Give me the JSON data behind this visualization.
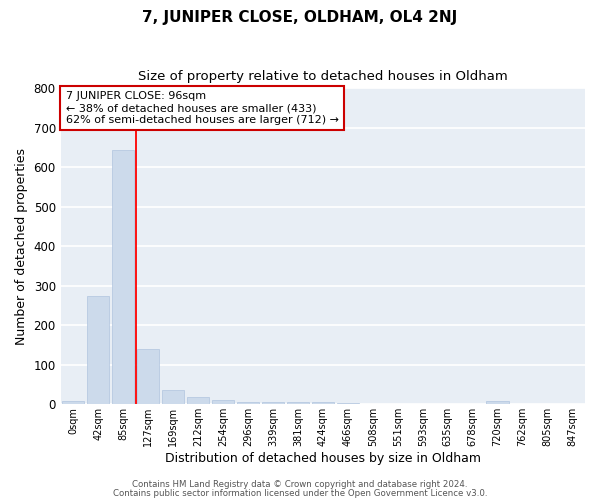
{
  "title": "7, JUNIPER CLOSE, OLDHAM, OL4 2NJ",
  "subtitle": "Size of property relative to detached houses in Oldham",
  "xlabel": "Distribution of detached houses by size in Oldham",
  "ylabel": "Number of detached properties",
  "bar_color": "#ccdaeb",
  "bar_edge_color": "#b0c4de",
  "categories": [
    "0sqm",
    "42sqm",
    "85sqm",
    "127sqm",
    "169sqm",
    "212sqm",
    "254sqm",
    "296sqm",
    "339sqm",
    "381sqm",
    "424sqm",
    "466sqm",
    "508sqm",
    "551sqm",
    "593sqm",
    "635sqm",
    "678sqm",
    "720sqm",
    "762sqm",
    "805sqm",
    "847sqm"
  ],
  "values": [
    8,
    273,
    645,
    140,
    35,
    18,
    10,
    7,
    7,
    5,
    5,
    3,
    0,
    0,
    0,
    0,
    0,
    8,
    0,
    0,
    0
  ],
  "ylim": [
    0,
    800
  ],
  "yticks": [
    0,
    100,
    200,
    300,
    400,
    500,
    600,
    700,
    800
  ],
  "red_line_x": 2.5,
  "annotation_text": "7 JUNIPER CLOSE: 96sqm\n← 38% of detached houses are smaller (433)\n62% of semi-detached houses are larger (712) →",
  "annotation_box_color": "white",
  "annotation_box_edgecolor": "#cc0000",
  "footer1": "Contains HM Land Registry data © Crown copyright and database right 2024.",
  "footer2": "Contains public sector information licensed under the Open Government Licence v3.0.",
  "fig_facecolor": "#ffffff",
  "plot_facecolor": "#e8eef5",
  "grid_color": "#ffffff",
  "title_fontsize": 11,
  "subtitle_fontsize": 9.5
}
